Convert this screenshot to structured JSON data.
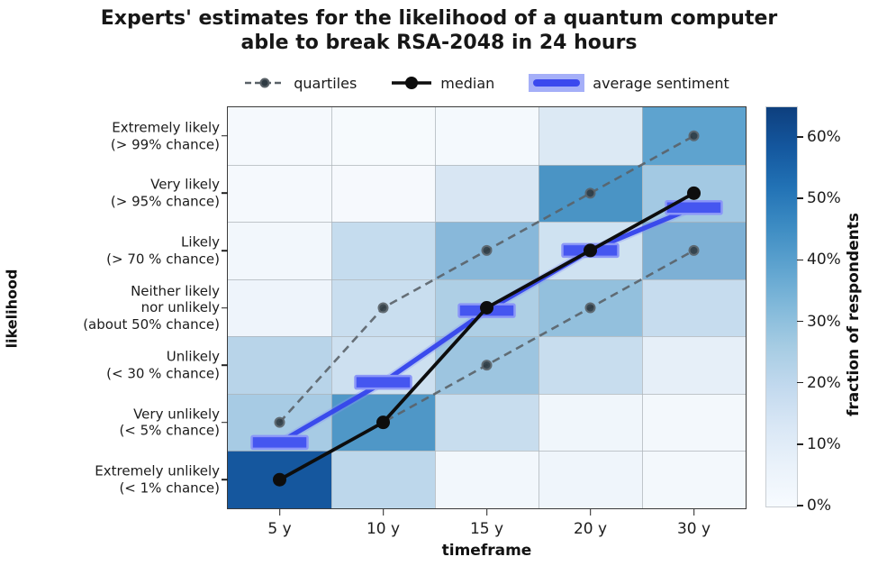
{
  "title": {
    "line1": "Experts' estimates for the likelihood of a quantum computer",
    "line2": "able to break RSA-2048 in 24 hours"
  },
  "legend": {
    "quartiles_label": "quartiles",
    "median_label": "median",
    "sentiment_label": "average sentiment"
  },
  "axes": {
    "x_label": "timeframe",
    "y_label": "likelihood",
    "colorbar_label": "fraction of respondents"
  },
  "colors": {
    "median": "#0d0d0d",
    "quartiles": "#5a6268",
    "quartile_marker_fill": "#2e3a42",
    "sentiment_line": "#3544ec",
    "sentiment_glow": "#8894f5",
    "sentiment_bar": "#4556f0",
    "sentiment_bar_edge": "#8b97f7",
    "heat_min": "#f7fbff",
    "heat_max": "#0e3f7e",
    "plot_border": "#3a3a3a",
    "grid_line": "#aeb4ba"
  },
  "chart_data": {
    "type": "heatmap",
    "title": "Experts' estimates for the likelihood of a quantum computer able to break RSA-2048 in 24 hours",
    "xlabel": "timeframe",
    "ylabel": "likelihood",
    "x_categories": [
      "5 y",
      "10 y",
      "15 y",
      "20 y",
      "30 y"
    ],
    "y_categories_top_to_bottom": [
      "Extremely likely\n(> 99% chance)",
      "Very likely\n(> 95% chance)",
      "Likely\n(> 70 % chance)",
      "Neither likely\nnor unlikely\n(about 50% chance)",
      "Unlikely\n(< 30 % chance)",
      "Very unlikely\n(< 5% chance)",
      "Extremely unlikely\n(< 1% chance)"
    ],
    "colorbar": {
      "label": "fraction of respondents",
      "tick_labels": [
        "0%",
        "10%",
        "20%",
        "30%",
        "40%",
        "50%",
        "60%"
      ],
      "tick_values_percent": [
        0,
        10,
        20,
        30,
        40,
        50,
        60
      ],
      "range_percent": [
        0,
        65
      ]
    },
    "cell_values_percent_rows_top_to_bottom": [
      [
        1,
        1,
        1,
        9,
        36
      ],
      [
        1,
        1,
        10,
        41,
        21
      ],
      [
        2,
        14,
        28,
        12,
        30
      ],
      [
        4,
        13,
        19,
        25,
        14
      ],
      [
        15,
        12,
        23,
        13,
        6
      ],
      [
        18,
        40,
        13,
        3,
        2
      ],
      [
        57,
        16,
        2,
        3,
        2
      ]
    ],
    "cell_colors_rows_top_to_bottom": [
      [
        "#f5f9fd",
        "#f6fafd",
        "#f4f9fd",
        "#dce9f4",
        "#5ea3cf"
      ],
      [
        "#f5f9fd",
        "#f6f9fd",
        "#d8e6f3",
        "#4a94c5",
        "#a3c9e3"
      ],
      [
        "#f2f7fc",
        "#c5dcee",
        "#88b8da",
        "#cfe2f1",
        "#7db0d5"
      ],
      [
        "#eef4fb",
        "#c9deef",
        "#aecfe5",
        "#93c0dd",
        "#c6dcee"
      ],
      [
        "#b8d4e9",
        "#cde0f0",
        "#9dc5e0",
        "#c8ddee",
        "#e6eff8"
      ],
      [
        "#a7cbe4",
        "#4f97c7",
        "#c8ddee",
        "#f0f6fb",
        "#f3f8fc"
      ],
      [
        "#15579e",
        "#bdd7eb",
        "#f2f7fc",
        "#eff5fb",
        "#f3f8fc"
      ]
    ],
    "likelihood_index_scale": "0 = Extremely unlikely (bottom row) … 6 = Extremely likely (top row)",
    "series": [
      {
        "name": "quartiles (upper)",
        "style": "dashed-gray",
        "likelihood_index_by_timeframe": [
          1,
          3,
          4,
          5,
          6
        ]
      },
      {
        "name": "quartiles (lower)",
        "style": "dashed-gray",
        "likelihood_index_by_timeframe": [
          0,
          1,
          2,
          3,
          4
        ]
      },
      {
        "name": "median",
        "style": "solid-black",
        "likelihood_index_by_timeframe": [
          0,
          1,
          3,
          4,
          5
        ]
      },
      {
        "name": "average sentiment",
        "style": "thick-blue-bars",
        "likelihood_value_by_timeframe": [
          0.65,
          1.7,
          2.95,
          4.0,
          4.75
        ]
      }
    ]
  }
}
